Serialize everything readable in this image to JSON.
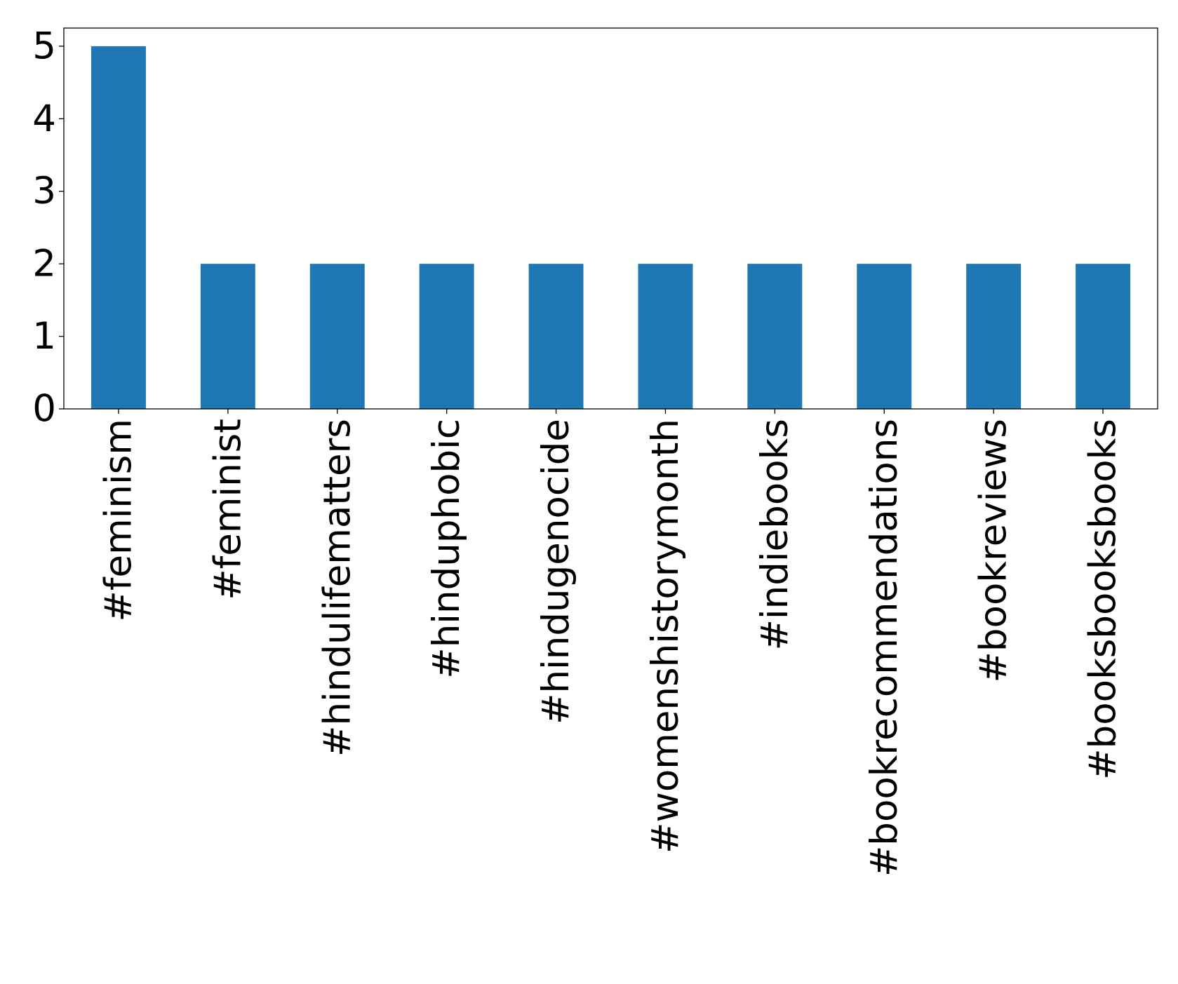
{
  "chart_data": {
    "type": "bar",
    "title": "",
    "xlabel": "",
    "ylabel": "",
    "categories": [
      "#feminism",
      "#feminist",
      "#hindulifematters",
      "#hinduphobic",
      "#hindugenocide",
      "#womenshistorymonth",
      "#indiebooks",
      "#bookrecommendations",
      "#bookreviews",
      "#booksbooksbooks"
    ],
    "values": [
      5,
      2,
      2,
      2,
      2,
      2,
      2,
      2,
      2,
      2
    ],
    "ylim": [
      0,
      5.25
    ],
    "yticks": [
      0,
      1,
      2,
      3,
      4,
      5
    ],
    "ytick_labels": [
      "0",
      "1",
      "2",
      "3",
      "4",
      "5"
    ],
    "bar_color": "#1f77b4",
    "grid": false,
    "legend": "none",
    "xtick_rotation": "vertical"
  }
}
